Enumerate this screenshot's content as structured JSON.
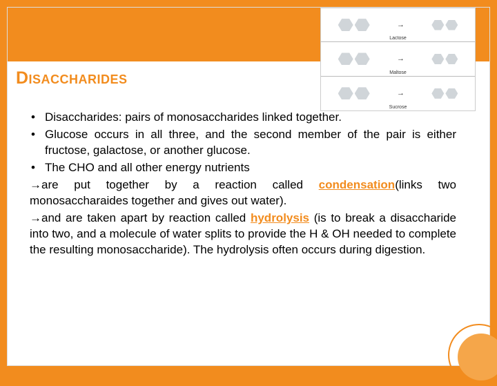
{
  "title": "Disaccharides",
  "bullets": [
    "Disaccharides: pairs of monosaccharides linked together.",
    "Glucose occurs in all three, and the second member of the pair is either fructose, galactose, or another glucose.",
    "The CHO and all other energy nutrients"
  ],
  "arrow1_pre": "→are put together by a reaction called ",
  "arrow1_key": "condensation",
  "arrow1_post": "(links two monosaccharaides together and gives out water).",
  "arrow2_pre": "→and are taken apart by reaction called ",
  "arrow2_key": "hydrolysis",
  "arrow2_post": " (is to break a disaccharide into two, and a molecule of water splits to provide the H & OH needed to complete the resulting monosaccharide). The hydrolysis often occurs during digestion.",
  "diagram": {
    "rows": [
      {
        "label": "Lactose"
      },
      {
        "label": "Maltose"
      },
      {
        "label": "Sucrose"
      }
    ]
  },
  "colors": {
    "accent": "#f28c1e",
    "background": "#ffffff",
    "text": "#000000",
    "hex_fill": "#d0d5d9"
  }
}
